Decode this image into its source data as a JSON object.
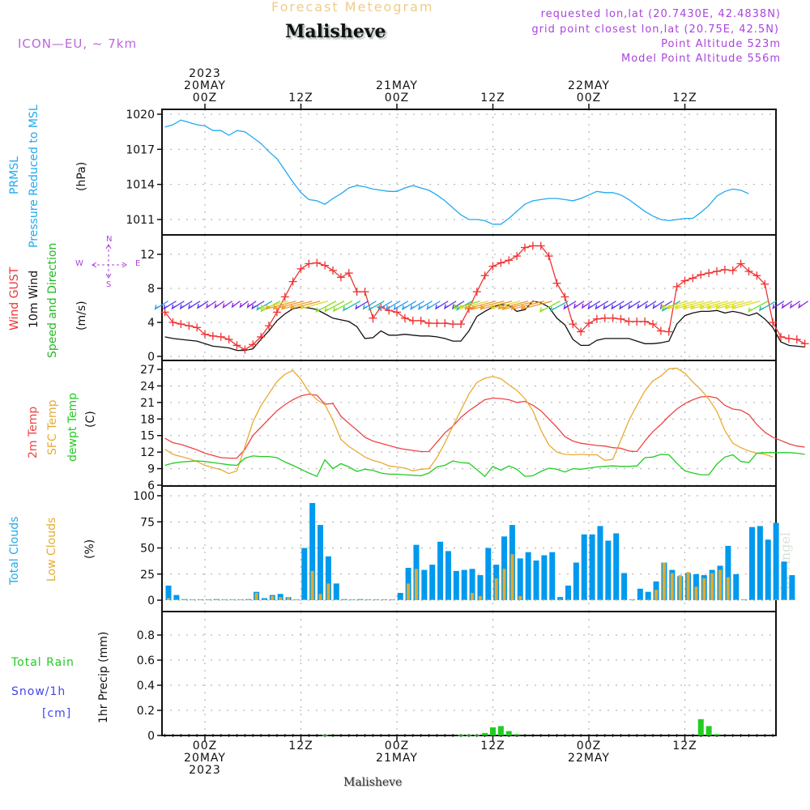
{
  "header": {
    "top_title": "Forecast Meteogram",
    "location": "Malisheve",
    "model": "ICON—EU,  ~  7km",
    "requested": "requested lon,lat (20.7430E, 42.4838N)",
    "grid_point": "grid point closest lon,lat (20.75E, 42.5N)",
    "point_altitude": "Point Altitude 523m",
    "model_altitude": "Model Point Altitude 556m"
  },
  "footer": {
    "location": "Malisheve",
    "watermark": "by Angel"
  },
  "time_axis_top": [
    {
      "h": 0,
      "lines": [
        "2023",
        "20MAY",
        "00Z"
      ]
    },
    {
      "h": 12,
      "lines": [
        "12Z"
      ]
    },
    {
      "h": 24,
      "lines": [
        "21MAY",
        "00Z"
      ]
    },
    {
      "h": 36,
      "lines": [
        "12Z"
      ]
    },
    {
      "h": 48,
      "lines": [
        "22MAY",
        "00Z"
      ]
    },
    {
      "h": 60,
      "lines": [
        "12Z"
      ]
    }
  ],
  "time_axis_bottom": [
    {
      "h": 0,
      "lines": [
        "00Z",
        "20MAY",
        "2023"
      ]
    },
    {
      "h": 12,
      "lines": [
        "12Z"
      ]
    },
    {
      "h": 24,
      "lines": [
        "00Z",
        "21MAY"
      ]
    },
    {
      "h": 36,
      "lines": [
        "12Z"
      ]
    },
    {
      "h": 48,
      "lines": [
        "00Z",
        "22MAY"
      ]
    },
    {
      "h": 60,
      "lines": [
        "12Z"
      ]
    }
  ],
  "panel_labels": {
    "pressure": [
      {
        "text": "PRMSL",
        "color": "#22aaee"
      },
      {
        "text": "Pressure Reduced to MSL",
        "color": "#22aaee"
      },
      {
        "text": "(hPa)",
        "color": "#111111"
      }
    ],
    "wind": [
      {
        "text": "Wind GUST",
        "color": "#ee3333",
        "prefix": "Wind ",
        "highlight": "GUST"
      },
      {
        "text": "10m Wind",
        "color": "#111111"
      },
      {
        "text": "Speed and Direction",
        "color": "#22bb22"
      },
      {
        "text": "(m/s)",
        "color": "#111111"
      }
    ],
    "compass": {
      "n": "N",
      "s": "S",
      "w": "W",
      "e": "E"
    },
    "temp": [
      {
        "text": "2m Temp",
        "color": "#ee4444"
      },
      {
        "text": "SFC Temp",
        "color": "#e8aa33"
      },
      {
        "text": "dewpt Temp",
        "color": "#22cc22"
      },
      {
        "text": "(C)",
        "color": "#111111"
      }
    ],
    "clouds": [
      {
        "text": "Total Clouds",
        "color": "#22aaee"
      },
      {
        "text": "Low Clouds",
        "color": "#e8aa33"
      },
      {
        "text": "(%)",
        "color": "#111111"
      }
    ],
    "precip": {
      "total": "Total",
      "rain": "Rain",
      "snow": "Snow/1h",
      "unit": "[cm]",
      "axis": "1hr Precip (mm)"
    }
  },
  "chart_data": [
    {
      "type": "line",
      "title": "PRMSL Pressure Reduced to MSL",
      "ylabel": "(hPa)",
      "ylim": [
        1009.5,
        1020.5
      ],
      "yticks": [
        1011,
        1014,
        1017,
        1020
      ],
      "x_hours_start": -5,
      "x_step_h": 1,
      "series": [
        {
          "name": "PRMSL",
          "color": "#22aaee",
          "values": [
            1018.9,
            1019.1,
            1019.5,
            1019.3,
            1019.1,
            1019.0,
            1018.6,
            1018.6,
            1018.2,
            1018.6,
            1018.5,
            1018.0,
            1017.5,
            1016.8,
            1016.2,
            1015.2,
            1014.2,
            1013.3,
            1012.7,
            1012.6,
            1012.3,
            1012.8,
            1013.2,
            1013.7,
            1013.9,
            1013.8,
            1013.6,
            1013.5,
            1013.4,
            1013.4,
            1013.7,
            1013.9,
            1013.7,
            1013.5,
            1013.1,
            1012.6,
            1012.0,
            1011.4,
            1011.0,
            1011.0,
            1010.9,
            1010.6,
            1010.6,
            1011.1,
            1011.7,
            1012.3,
            1012.6,
            1012.7,
            1012.8,
            1012.8,
            1012.7,
            1012.6,
            1012.8,
            1013.1,
            1013.4,
            1013.3,
            1013.3,
            1013.1,
            1012.7,
            1012.2,
            1011.7,
            1011.3,
            1011.0,
            1010.9,
            1011.0,
            1011.1,
            1011.1,
            1011.6,
            1012.2,
            1013.0,
            1013.4,
            1013.6,
            1013.5,
            1013.2
          ]
        }
      ]
    },
    {
      "type": "line",
      "title": "Wind GUST / 10m Wind Speed and Direction",
      "ylabel": "(m/s)",
      "ylim": [
        -0.3,
        14
      ],
      "yticks": [
        0,
        4,
        8,
        12
      ],
      "x_hours_start": -5,
      "x_step_h": 1,
      "series": [
        {
          "name": "Wind GUST",
          "color": "#ee3333",
          "marker": "+",
          "values": [
            5.2,
            4.0,
            3.8,
            3.6,
            3.4,
            2.6,
            2.4,
            2.3,
            2.0,
            1.3,
            0.8,
            1.4,
            2.3,
            3.6,
            5.2,
            7.0,
            8.8,
            10.3,
            10.9,
            11.0,
            10.7,
            10.1,
            9.3,
            9.8,
            7.6,
            7.6,
            4.5,
            5.8,
            5.4,
            5.2,
            4.5,
            4.2,
            4.2,
            3.9,
            3.9,
            3.9,
            3.8,
            3.8,
            5.6,
            7.6,
            9.5,
            10.6,
            11.0,
            11.3,
            11.8,
            12.8,
            13.0,
            13.0,
            11.8,
            8.6,
            7.0,
            3.8,
            2.9,
            3.9,
            4.4,
            4.5,
            4.5,
            4.4,
            4.1,
            4.1,
            4.1,
            3.8,
            3.0,
            2.9,
            8.2,
            8.9,
            9.2,
            9.6,
            9.8,
            10.0,
            10.2,
            10.1,
            10.9,
            10.0,
            9.5,
            8.5,
            4.0,
            2.3,
            2.1,
            2.0,
            1.5
          ]
        },
        {
          "name": "10m Wind",
          "color": "#111111",
          "values": [
            2.3,
            2.1,
            2.0,
            1.9,
            1.8,
            1.5,
            1.2,
            1.1,
            1.0,
            0.7,
            0.7,
            0.9,
            2.0,
            3.0,
            4.2,
            5.0,
            5.6,
            5.8,
            5.7,
            5.5,
            5.0,
            4.5,
            4.3,
            4.1,
            3.5,
            2.1,
            2.2,
            3.0,
            2.5,
            2.5,
            2.6,
            2.5,
            2.4,
            2.4,
            2.3,
            2.1,
            1.8,
            1.8,
            3.0,
            4.7,
            5.3,
            5.8,
            6.1,
            6.0,
            5.3,
            5.5,
            6.5,
            6.3,
            5.8,
            4.5,
            3.7,
            2.0,
            1.3,
            1.3,
            1.9,
            2.1,
            2.1,
            2.1,
            2.1,
            1.8,
            1.5,
            1.5,
            1.6,
            1.8,
            3.8,
            4.8,
            5.1,
            5.3,
            5.3,
            5.4,
            5.1,
            5.3,
            5.1,
            4.8,
            5.1,
            4.4,
            3.4,
            1.7,
            1.3,
            1.2,
            1.1
          ]
        }
      ],
      "wind_barbs": {
        "level_ms": 6.5,
        "count": 78,
        "note": "direction arrows coloured by speed"
      }
    },
    {
      "type": "line",
      "title": "2m Temp / SFC Temp / dewpt Temp",
      "ylabel": "(C)",
      "ylim": [
        6,
        28
      ],
      "yticks": [
        6,
        9,
        12,
        15,
        18,
        21,
        24,
        27
      ],
      "x_hours_start": -5,
      "x_step_h": 1,
      "series": [
        {
          "name": "2m Temp",
          "color": "#ee4444",
          "values": [
            14.5,
            13.7,
            13.4,
            12.9,
            12.4,
            11.8,
            11.4,
            11.0,
            10.9,
            10.9,
            12.5,
            15.0,
            16.5,
            18.0,
            19.5,
            20.6,
            21.5,
            22.2,
            22.5,
            22.3,
            20.7,
            20.8,
            18.5,
            17.2,
            16.0,
            14.7,
            14.0,
            13.6,
            13.2,
            12.8,
            12.5,
            12.3,
            12.1,
            12.1,
            13.8,
            15.5,
            16.7,
            18.3,
            19.5,
            20.5,
            21.5,
            21.8,
            21.7,
            21.5,
            21.0,
            21.2,
            20.5,
            19.5,
            18.0,
            16.5,
            14.8,
            14.0,
            13.6,
            13.4,
            13.2,
            13.1,
            12.8,
            12.7,
            12.2,
            12.1,
            14.0,
            15.7,
            17.0,
            18.5,
            19.8,
            20.8,
            21.5,
            22.0,
            22.1,
            21.8,
            20.5,
            19.8,
            19.6,
            18.8,
            17.0,
            15.6,
            14.7,
            14.1,
            13.5,
            13.1,
            12.9
          ]
        },
        {
          "name": "SFC Temp",
          "color": "#e8aa33",
          "values": [
            12.5,
            11.6,
            11.2,
            10.8,
            10.3,
            9.6,
            9.2,
            8.8,
            8.1,
            8.6,
            13.0,
            17.5,
            20.4,
            22.6,
            24.8,
            26.1,
            26.8,
            25.2,
            22.9,
            21.5,
            20.6,
            17.8,
            14.3,
            13.0,
            12.1,
            11.1,
            10.5,
            10.1,
            9.5,
            9.3,
            9.1,
            8.6,
            8.9,
            9.0,
            11.0,
            13.7,
            16.7,
            19.6,
            22.5,
            24.6,
            25.4,
            25.7,
            25.3,
            24.2,
            23.2,
            21.7,
            19.5,
            16.0,
            13.3,
            12.0,
            11.6,
            11.5,
            11.6,
            11.5,
            11.5,
            10.5,
            10.7,
            14.2,
            17.7,
            20.5,
            23.1,
            24.9,
            25.8,
            27.1,
            27.2,
            26.3,
            24.7,
            23.3,
            21.6,
            19.4,
            15.9,
            13.6,
            12.8,
            12.2,
            11.8,
            11.6,
            11.1
          ]
        },
        {
          "name": "dewpt Temp",
          "color": "#22cc22",
          "values": [
            9.6,
            10.0,
            10.2,
            10.3,
            10.4,
            10.3,
            10.1,
            9.9,
            9.7,
            9.6,
            10.9,
            11.3,
            11.2,
            11.2,
            11.0,
            10.2,
            9.6,
            8.9,
            8.2,
            7.6,
            10.6,
            9.0,
            9.9,
            9.3,
            8.5,
            8.9,
            8.7,
            8.2,
            8.0,
            8.0,
            7.9,
            7.8,
            7.7,
            8.2,
            9.3,
            9.6,
            10.4,
            10.1,
            10.0,
            8.8,
            7.6,
            9.4,
            8.7,
            9.5,
            8.9,
            7.6,
            7.7,
            8.5,
            9.1,
            8.9,
            8.4,
            9.0,
            8.9,
            9.1,
            9.3,
            9.4,
            9.5,
            9.4,
            9.4,
            9.5,
            11.0,
            11.1,
            11.6,
            11.5,
            10.0,
            8.6,
            8.2,
            7.9,
            7.9,
            9.8,
            11.1,
            11.5,
            10.3,
            10.1,
            11.8,
            11.9,
            11.9,
            11.9,
            11.9,
            11.8,
            11.6
          ]
        }
      ]
    },
    {
      "type": "bar",
      "title": "Total Clouds / Low Clouds",
      "ylabel": "(%)",
      "ylim": [
        -10,
        105
      ],
      "yticks": [
        0,
        25,
        50,
        75,
        100
      ],
      "x_hours_start": -4,
      "x_step_h": 1,
      "series": [
        {
          "name": "Total Clouds",
          "color": "#0099ee",
          "values": [
            14,
            5,
            1,
            0,
            0,
            0,
            1,
            0,
            0,
            0,
            1,
            8,
            2,
            5,
            6,
            3,
            0,
            50,
            93,
            72,
            42,
            16,
            1,
            0,
            1,
            0,
            0,
            0,
            0,
            7,
            31,
            53,
            29,
            34,
            56,
            47,
            28,
            29,
            30,
            24,
            50,
            34,
            61,
            72,
            40,
            46,
            38,
            43,
            46,
            3,
            14,
            36,
            63,
            63,
            71,
            57,
            64,
            26,
            0,
            11,
            8,
            18,
            36,
            29,
            23,
            26,
            25,
            24,
            29,
            33,
            52,
            25,
            0,
            70,
            71,
            58,
            74,
            37,
            24
          ]
        },
        {
          "name": "Low Clouds",
          "color": "#e0aa30",
          "values": [
            2,
            0,
            0,
            0,
            0,
            0,
            0,
            0,
            0,
            0,
            0,
            7,
            1,
            4,
            3,
            3,
            0,
            0,
            28,
            6,
            16,
            0,
            0,
            0,
            0,
            0,
            0,
            0,
            0,
            0,
            16,
            30,
            0,
            0,
            0,
            0,
            0,
            0,
            7,
            4,
            0,
            21,
            30,
            44,
            4,
            0,
            0,
            0,
            0,
            0,
            1,
            0,
            0,
            0,
            0,
            0,
            0,
            0,
            0,
            0,
            0,
            10,
            36,
            26,
            24,
            27,
            13,
            21,
            26,
            29,
            22,
            0,
            0,
            0,
            0,
            0,
            0,
            0,
            0
          ]
        }
      ]
    },
    {
      "type": "bar",
      "title": "Total Rain / Snow 1h",
      "ylabel": "1hr Precip (mm)",
      "ylim": [
        0,
        1.0
      ],
      "yticks": [
        0,
        0.2,
        0.4,
        0.6,
        0.8
      ],
      "series": [
        {
          "name": "Total Rain",
          "color": "#22cc22",
          "points": [
            {
              "h": 15,
              "v": 0.005
            },
            {
              "h": 32,
              "v": 0.005
            },
            {
              "h": 33,
              "v": 0.005
            },
            {
              "h": 34,
              "v": 0.005
            },
            {
              "h": 35,
              "v": 0.02
            },
            {
              "h": 36,
              "v": 0.065
            },
            {
              "h": 37,
              "v": 0.075
            },
            {
              "h": 38,
              "v": 0.035
            },
            {
              "h": 39,
              "v": 0.01
            },
            {
              "h": 62,
              "v": 0.13
            },
            {
              "h": 63,
              "v": 0.075
            },
            {
              "h": 64,
              "v": 0.01
            }
          ]
        },
        {
          "name": "Snow/1h",
          "color": "#4444ee",
          "points": []
        }
      ]
    }
  ]
}
